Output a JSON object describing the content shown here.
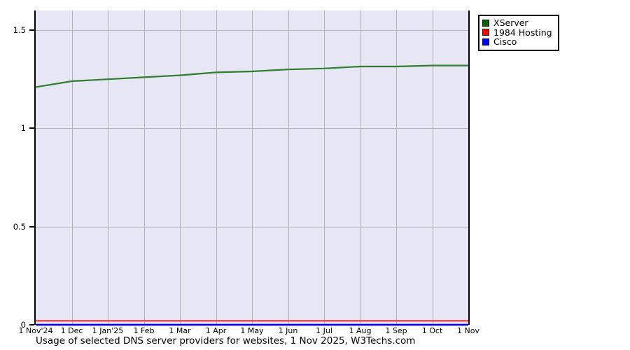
{
  "title": "Usage of selected DNS server providers for websites, 1 Nov 2025, W3Techs.com",
  "legend": {
    "items": [
      {
        "label": "XServer",
        "color": "#006400"
      },
      {
        "label": "1984 Hosting",
        "color": "#ff0000"
      },
      {
        "label": "Cisco",
        "color": "#0000ff"
      }
    ]
  },
  "chart_data": {
    "type": "line",
    "title": "Usage of selected DNS server providers for websites, 1 Nov 2025, W3Techs.com",
    "x_labels": [
      "1 Nov'24",
      "1 Dec",
      "1 Jan'25",
      "1 Feb",
      "1 Mar",
      "1 Apr",
      "1 May",
      "1 Jun",
      "1 Jul",
      "1 Aug",
      "1 Sep",
      "1 Oct",
      "1 Nov"
    ],
    "y_ticks": [
      0,
      0.5,
      1,
      1.5
    ],
    "ylim": [
      0,
      1.6
    ],
    "grid": true,
    "legend_position": "top-right-outside",
    "plot_bg": "#e6e6f4",
    "grid_color": "#b3b3b3",
    "axis_color": "#000000",
    "series": [
      {
        "name": "XServer",
        "color": "#2e7d2e",
        "values": [
          1.21,
          1.24,
          1.25,
          1.26,
          1.27,
          1.285,
          1.29,
          1.3,
          1.305,
          1.315,
          1.315,
          1.32,
          1.32
        ]
      },
      {
        "name": "1984 Hosting",
        "color": "#ff0000",
        "values": [
          0.02,
          0.02,
          0.02,
          0.02,
          0.02,
          0.02,
          0.02,
          0.02,
          0.02,
          0.02,
          0.02,
          0.02,
          0.02
        ]
      },
      {
        "name": "Cisco",
        "color": "#0000ff",
        "values": [
          0,
          0,
          0,
          0,
          0,
          0,
          0,
          0,
          0,
          0,
          0,
          0,
          0
        ]
      }
    ]
  }
}
